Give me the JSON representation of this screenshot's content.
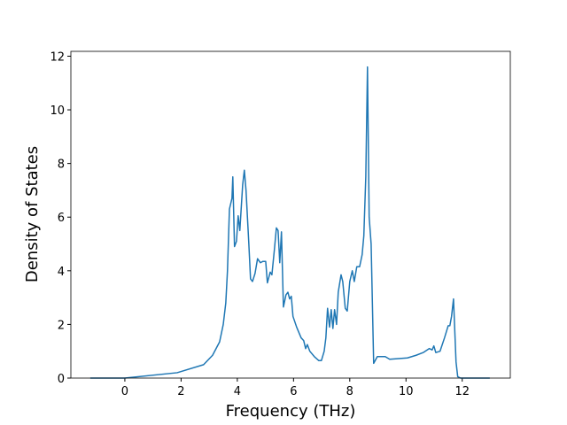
{
  "chart_data": {
    "type": "line",
    "xlabel": "Frequency (THz)",
    "ylabel": "Density of States",
    "xlim": [
      -1.92,
      13.71
    ],
    "ylim": [
      0,
      12.18
    ],
    "xticks": [
      0,
      2,
      4,
      6,
      8,
      10,
      12
    ],
    "yticks": [
      0,
      2,
      4,
      6,
      8,
      10,
      12
    ],
    "grid": false,
    "series": [
      {
        "color": "#1f77b4",
        "x": [
          -1.23,
          0,
          1.86,
          2.8,
          3.12,
          3.37,
          3.5,
          3.59,
          3.65,
          3.72,
          3.81,
          3.84,
          3.9,
          3.97,
          4.03,
          4.09,
          4.19,
          4.25,
          4.31,
          4.41,
          4.47,
          4.54,
          4.63,
          4.72,
          4.82,
          4.91,
          5.01,
          5.07,
          5.17,
          5.23,
          5.32,
          5.39,
          5.45,
          5.51,
          5.57,
          5.64,
          5.73,
          5.8,
          5.86,
          5.92,
          5.98,
          6.11,
          6.27,
          6.36,
          6.43,
          6.49,
          6.58,
          6.74,
          6.9,
          6.99,
          7.09,
          7.15,
          7.21,
          7.28,
          7.34,
          7.4,
          7.46,
          7.53,
          7.59,
          7.69,
          7.75,
          7.84,
          7.91,
          8.0,
          8.09,
          8.16,
          8.25,
          8.35,
          8.44,
          8.5,
          8.57,
          8.63,
          8.69,
          8.76,
          8.85,
          8.98,
          9.26,
          9.42,
          10.05,
          10.36,
          10.61,
          10.83,
          10.93,
          10.99,
          11.06,
          11.21,
          11.37,
          11.5,
          11.56,
          11.62,
          11.69,
          11.78,
          11.84,
          11.94,
          12.98
        ],
        "values": [
          0,
          0,
          0.2,
          0.5,
          0.85,
          1.35,
          2.0,
          2.8,
          4.0,
          6.3,
          6.7,
          7.5,
          4.9,
          5.1,
          6.05,
          5.5,
          7.2,
          7.75,
          7.0,
          5.0,
          3.7,
          3.6,
          3.9,
          4.45,
          4.3,
          4.35,
          4.35,
          3.55,
          3.95,
          3.85,
          4.8,
          5.6,
          5.5,
          4.3,
          5.45,
          2.65,
          3.1,
          3.2,
          2.95,
          3.05,
          2.3,
          1.9,
          1.5,
          1.4,
          1.1,
          1.25,
          1.0,
          0.8,
          0.65,
          0.65,
          1.0,
          1.5,
          2.6,
          1.9,
          2.55,
          1.85,
          2.55,
          2.0,
          3.2,
          3.85,
          3.6,
          2.6,
          2.5,
          3.6,
          4.0,
          3.6,
          4.15,
          4.15,
          4.6,
          5.3,
          7.5,
          11.6,
          6.0,
          5.0,
          0.55,
          0.8,
          0.8,
          0.7,
          0.75,
          0.85,
          0.95,
          1.1,
          1.05,
          1.2,
          0.95,
          1.0,
          1.5,
          1.95,
          1.95,
          2.3,
          2.95,
          0.6,
          0.05,
          0,
          0
        ]
      }
    ]
  }
}
